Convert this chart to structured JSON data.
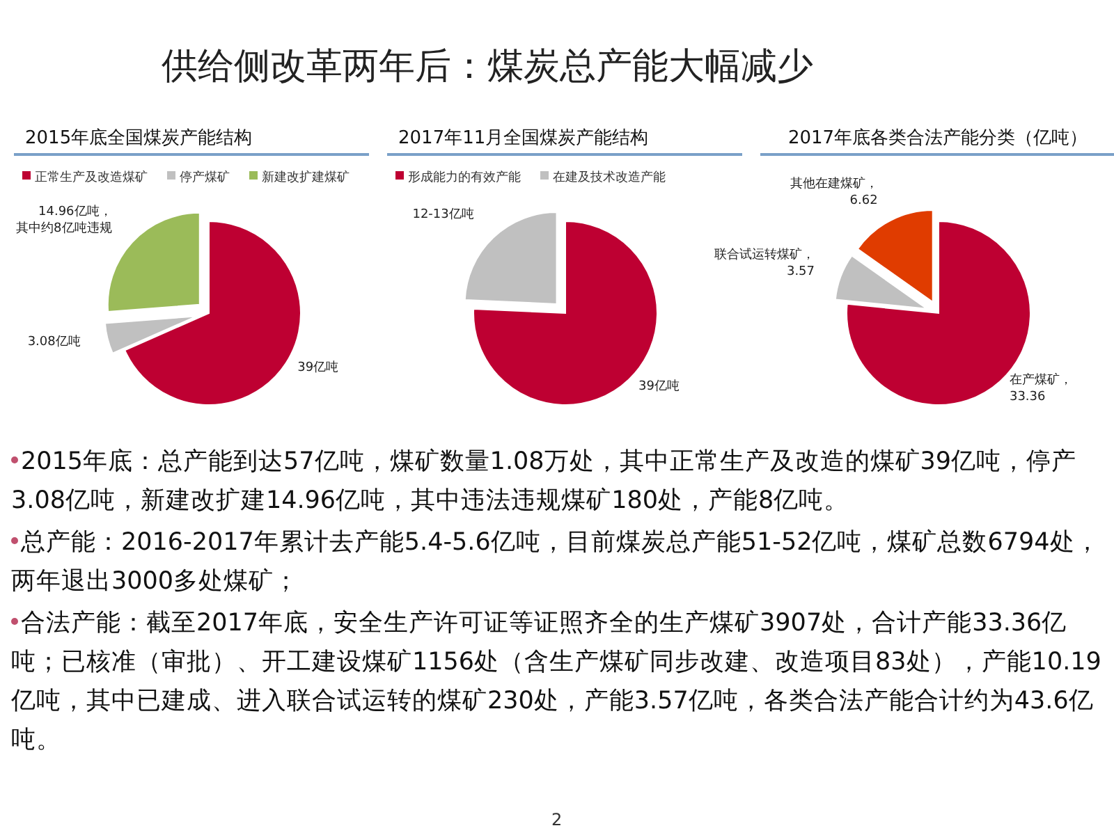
{
  "chart_data": [
    {
      "type": "pie",
      "title": "2015年底全国煤炭产能结构",
      "categories": [
        "正常生产及改造煤矿",
        "停产煤矿",
        "新建改扩建煤矿"
      ],
      "values": [
        39,
        3.08,
        14.96
      ],
      "colors": [
        "#be0032",
        "#c0c0c0",
        "#9bbb59"
      ],
      "value_labels": [
        "39亿吨",
        "3.08亿吨",
        "14.96亿吨，其中约8亿吨违规"
      ],
      "legend": "top"
    },
    {
      "type": "pie",
      "title": "2017年11月全国煤炭产能结构",
      "categories": [
        "形成能力的有效产能",
        "在建及技术改造产能"
      ],
      "values": [
        39,
        12.5
      ],
      "colors": [
        "#be0032",
        "#c0c0c0"
      ],
      "value_labels": [
        "39亿吨",
        "12-13亿吨"
      ],
      "legend": "top"
    },
    {
      "type": "pie",
      "title": "2017年底各类合法产能分类（亿吨）",
      "categories": [
        null,
        null,
        null
      ],
      "values": [
        33.36,
        3.57,
        6.62
      ],
      "colors": [
        "#be0032",
        "#c0c0c0",
        "#e03c00"
      ],
      "value_labels": [
        "在产煤矿，33.36",
        "联合试运转煤矿，3.57",
        "其他在建煤矿，6.62"
      ]
    },
    {
      "type": "other",
      "title": "供给侧改革两年后：煤炭总产能大幅减少",
      "annotations": [
        "2015年底：总产能到达57亿吨，煤矿数量1.08万处，其中正常生产及改造的煤矿39亿吨，停产3.08亿吨，新建改扩建14.96亿吨，其中违法违规煤矿180处，产能8亿吨。",
        "总产能：2016-2017年累计去产能5.4-5.6亿吨，目前煤炭总产能51-52亿吨，煤矿总数6794处，两年退出3000多处煤矿；",
        "合法产能：截至2017年底，安全生产许可证等证照齐全的生产煤矿3907处，合计产能33.36亿吨；已核准（审批）、开工建设煤矿1156处（含生产煤矿同步改建、改造项目83处），产能10.19亿吨，其中已建成、进入联合试运转的煤矿230处，产能3.57亿吨，各类合法产能合计约为43.6亿吨。",
        "2"
      ]
    }
  ]
}
